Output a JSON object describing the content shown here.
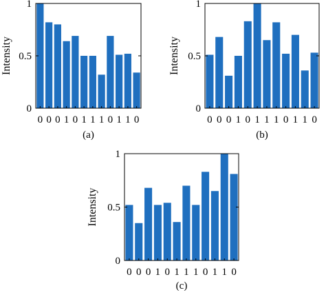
{
  "chart_data": [
    {
      "type": "bar",
      "caption": "(a)",
      "ylabel": "Intensity",
      "ylim": [
        0,
        1
      ],
      "yticks": [
        "0",
        "0.5",
        "1"
      ],
      "categories": [
        "0",
        "0",
        "0",
        "1",
        "0",
        "1",
        "1",
        "1",
        "0",
        "1",
        "1",
        "0"
      ],
      "values": [
        1.0,
        0.82,
        0.8,
        0.64,
        0.69,
        0.5,
        0.5,
        0.32,
        0.69,
        0.51,
        0.52,
        0.34
      ],
      "bar_color": "#1f6fbf",
      "grid": false
    },
    {
      "type": "bar",
      "caption": "(b)",
      "ylabel": "Intensity",
      "ylim": [
        0,
        1
      ],
      "yticks": [
        "0",
        "0.5",
        "1"
      ],
      "categories": [
        "0",
        "0",
        "0",
        "1",
        "0",
        "1",
        "1",
        "1",
        "0",
        "1",
        "1",
        "0"
      ],
      "values": [
        0.51,
        0.68,
        0.31,
        0.5,
        0.83,
        1.0,
        0.65,
        0.82,
        0.52,
        0.7,
        0.36,
        0.53
      ],
      "bar_color": "#1f6fbf",
      "grid": false
    },
    {
      "type": "bar",
      "caption": "(c)",
      "ylabel": "Intensity",
      "ylim": [
        0,
        1
      ],
      "yticks": [
        "0",
        "0.5",
        "1"
      ],
      "categories": [
        "0",
        "0",
        "0",
        "1",
        "0",
        "1",
        "1",
        "1",
        "0",
        "1",
        "1",
        "0"
      ],
      "values": [
        0.52,
        0.35,
        0.68,
        0.52,
        0.54,
        0.36,
        0.7,
        0.52,
        0.83,
        0.65,
        1.0,
        0.81
      ],
      "bar_color": "#1f6fbf",
      "grid": false
    }
  ]
}
